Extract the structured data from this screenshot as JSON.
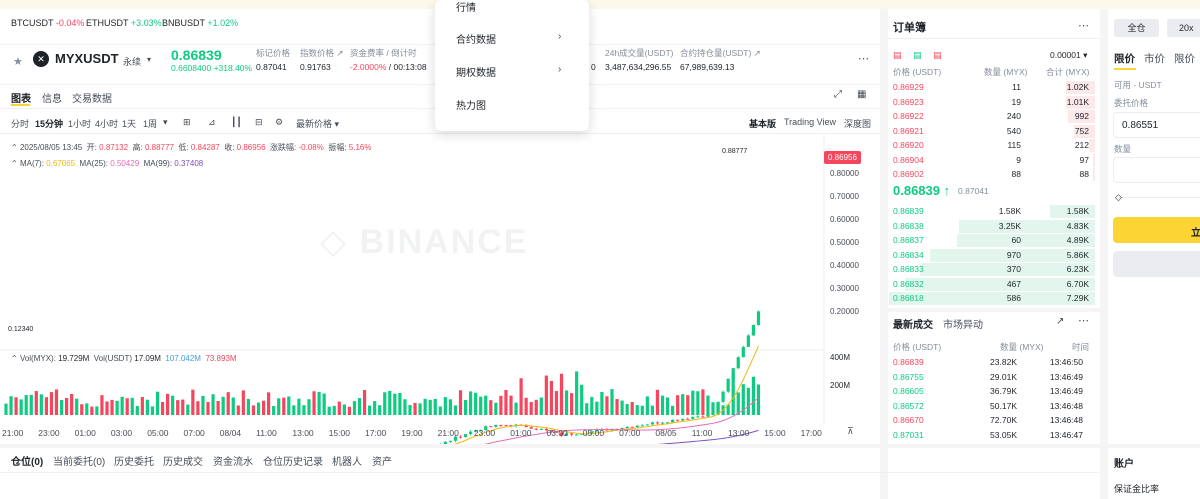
{
  "ticker": [
    {
      "sym": "BTCUSDT",
      "chg": "-0.04%",
      "dir": "down"
    },
    {
      "sym": "ETHUSDT",
      "chg": "+3.03%",
      "dir": "up"
    },
    {
      "sym": "BNBUSDT",
      "chg": "+1.02%",
      "dir": "up"
    }
  ],
  "header": {
    "symbol": "MYXUSDT",
    "contract": "永续",
    "price": "0.86839",
    "sub": "0.6608400",
    "sub_pct": "+318.40%",
    "stats": [
      {
        "label": "标记价格",
        "value": "0.87041"
      },
      {
        "label": "指数价格 ↗",
        "value": "0.91763"
      },
      {
        "label": "资金费率 / 倒计时",
        "value": "-2.0000%",
        "value2": "/ 00:13:08"
      },
      {
        "label": "24h成交量(USDT)",
        "value": "3,487,634,296.55"
      },
      {
        "label": "合约持仓量(USDT) ↗",
        "value": "67,989,639.13"
      }
    ],
    "partial_val": "0"
  },
  "menu": {
    "items": [
      "行情",
      "合约数据",
      "期权数据",
      "热力图"
    ]
  },
  "chart_tabs": [
    "图表",
    "信息",
    "交易数据"
  ],
  "toolbar": {
    "intervals": [
      "分时",
      "15分钟",
      "1小时",
      "4小时",
      "1天",
      "1周"
    ],
    "price_type": "最新价格",
    "views": [
      "基本版",
      "Trading View",
      "深度图"
    ]
  },
  "legend": {
    "date": "2025/08/05 13:45",
    "open_l": "开:",
    "open": "0.87132",
    "high_l": "高:",
    "high": "0.88777",
    "low_l": "低:",
    "low": "0.84287",
    "close_l": "收:",
    "close": "0.86956",
    "chg_l": "涨跌幅:",
    "chg": "-0.08%",
    "amp_l": "振幅:",
    "amp": "5.16%",
    "ma7_l": "MA(7):",
    "ma7": "0.67065",
    "ma25_l": "MA(25):",
    "ma25": "0.50429",
    "ma99_l": "MA(99):",
    "ma99": "0.37408"
  },
  "watermark": "BINANCE",
  "price_axis": [
    "0.80000",
    "0.70000",
    "0.60000",
    "0.50000",
    "0.40000",
    "0.30000",
    "0.20000"
  ],
  "price_tag": "0.86956",
  "high_mark": "0.88777",
  "low_mark": "0.12340",
  "vol_legend": {
    "l1": "Vol(MYX):",
    "v1": "19.729M",
    "l2": "Vol(USDT)",
    "v2": "17.09M",
    "v3": "107.042M",
    "v4": "73.893M"
  },
  "vol_axis": [
    "400M",
    "200M"
  ],
  "time_axis": [
    "21:00",
    "23:00",
    "01:00",
    "03:00",
    "05:00",
    "07:00",
    "08/04",
    "11:00",
    "13:00",
    "15:00",
    "17:00",
    "19:00",
    "21:00",
    "23:00",
    "01:00",
    "03:00",
    "05:00",
    "07:00",
    "08/05",
    "11:00",
    "13:00",
    "15:00",
    "17:00"
  ],
  "orderbook": {
    "title": "订单簿",
    "tick": "0.00001",
    "cols": [
      "价格 (USDT)",
      "数量 (MYX)",
      "合计 (MYX)"
    ],
    "asks": [
      [
        "0.86929",
        "11",
        "1.02K"
      ],
      [
        "0.86923",
        "19",
        "1.01K"
      ],
      [
        "0.86922",
        "240",
        "992"
      ],
      [
        "0.86921",
        "540",
        "752"
      ],
      [
        "0.86920",
        "115",
        "212"
      ],
      [
        "0.86904",
        "9",
        "97"
      ],
      [
        "0.86902",
        "88",
        "88"
      ]
    ],
    "last": "0.86839",
    "last_arrow": "↑",
    "mark": "0.87041",
    "bids": [
      [
        "0.86839",
        "1.58K",
        "1.58K"
      ],
      [
        "0.86838",
        "3.25K",
        "4.83K"
      ],
      [
        "0.86837",
        "60",
        "4.89K"
      ],
      [
        "0.86834",
        "970",
        "5.86K"
      ],
      [
        "0.86833",
        "370",
        "6.23K"
      ],
      [
        "0.86832",
        "467",
        "6.70K"
      ],
      [
        "0.86818",
        "586",
        "7.29K"
      ]
    ],
    "ask_depth": [
      0.14,
      0.14,
      0.13,
      0.1,
      0.03,
      0.01,
      0.01
    ],
    "bid_depth": [
      0.22,
      0.66,
      0.67,
      0.8,
      0.85,
      0.92,
      1.0
    ]
  },
  "trades": {
    "tabs": [
      "最新成交",
      "市场异动"
    ],
    "cols": [
      "价格 (USDT)",
      "数量 (MYX)",
      "时间"
    ],
    "rows": [
      [
        "0.86839",
        "23.82K",
        "13:46:50",
        "down"
      ],
      [
        "0.86755",
        "29.01K",
        "13:46:49",
        "up"
      ],
      [
        "0.86605",
        "36.79K",
        "13:46:49",
        "up"
      ],
      [
        "0.86572",
        "50.17K",
        "13:46:48",
        "up"
      ],
      [
        "0.86670",
        "72.70K",
        "13:46:48",
        "down"
      ],
      [
        "0.87031",
        "53.05K",
        "13:46:47",
        "up"
      ]
    ]
  },
  "order_panel": {
    "margin": "全仓",
    "lev": "20x",
    "types": [
      "限价",
      "市价",
      "限价"
    ],
    "avail": "可用 - USDT",
    "price_label": "委托价格",
    "price_value": "0.86551",
    "qty_label": "数量",
    "buy": "立"
  },
  "bottom_tabs": [
    "仓位(0)",
    "当前委托(0)",
    "历史委托",
    "历史成交",
    "资金流水",
    "仓位历史记录",
    "机器人",
    "资产"
  ],
  "account": {
    "title": "账户",
    "margin_ratio": "保证金比率"
  },
  "colors": {
    "up": "#0ecb81",
    "down": "#f6465d",
    "yellow": "#fcd535",
    "ma7": "#f0b90b",
    "ma25": "#e86cb7",
    "ma99": "#7b4fbf"
  }
}
